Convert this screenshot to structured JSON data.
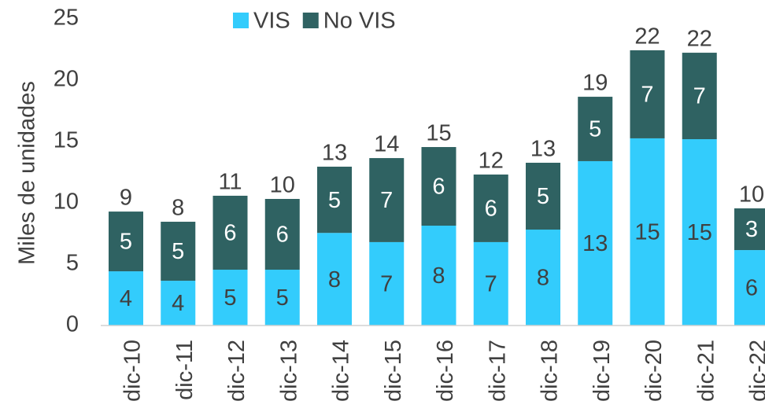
{
  "chart_data": {
    "type": "stacked_bar",
    "y_label": "Miles de unidades",
    "categories": [
      "dic-10",
      "dic-11",
      "dic-12",
      "dic-13",
      "dic-14",
      "dic-15",
      "dic-16",
      "dic-17",
      "dic-18",
      "dic-19",
      "dic-20",
      "dic-21",
      "dic-22"
    ],
    "series": [
      {
        "name": "VIS",
        "color": "#33ccfc",
        "values": [
          4.42,
          3.65,
          4.55,
          4.55,
          7.55,
          6.8,
          8.14,
          6.8,
          7.82,
          13.4,
          15.26,
          15.19,
          6.15
        ],
        "value_labels": [
          "4",
          "4",
          "5",
          "5",
          "8",
          "7",
          "8",
          "7",
          "8",
          "13",
          "15",
          "15",
          "6"
        ]
      },
      {
        "name": "No VIS",
        "color": "#2f6262",
        "values": [
          4.87,
          4.81,
          6.03,
          5.77,
          5.4,
          6.85,
          6.41,
          5.51,
          5.45,
          5.25,
          7.18,
          7.05,
          3.4
        ],
        "value_labels": [
          "5",
          "5",
          "6",
          "6",
          "5",
          "7",
          "6",
          "6",
          "5",
          "5",
          "7",
          "7",
          "3"
        ]
      }
    ],
    "total_labels": [
      "9",
      "8",
      "11",
      "10",
      "13",
      "14",
      "15",
      "12",
      "13",
      "19",
      "22",
      "22",
      "10"
    ],
    "ylim": [
      0,
      25
    ],
    "yticks": [
      0,
      5,
      10,
      15,
      20,
      25
    ],
    "grid": false,
    "legend": "top"
  }
}
